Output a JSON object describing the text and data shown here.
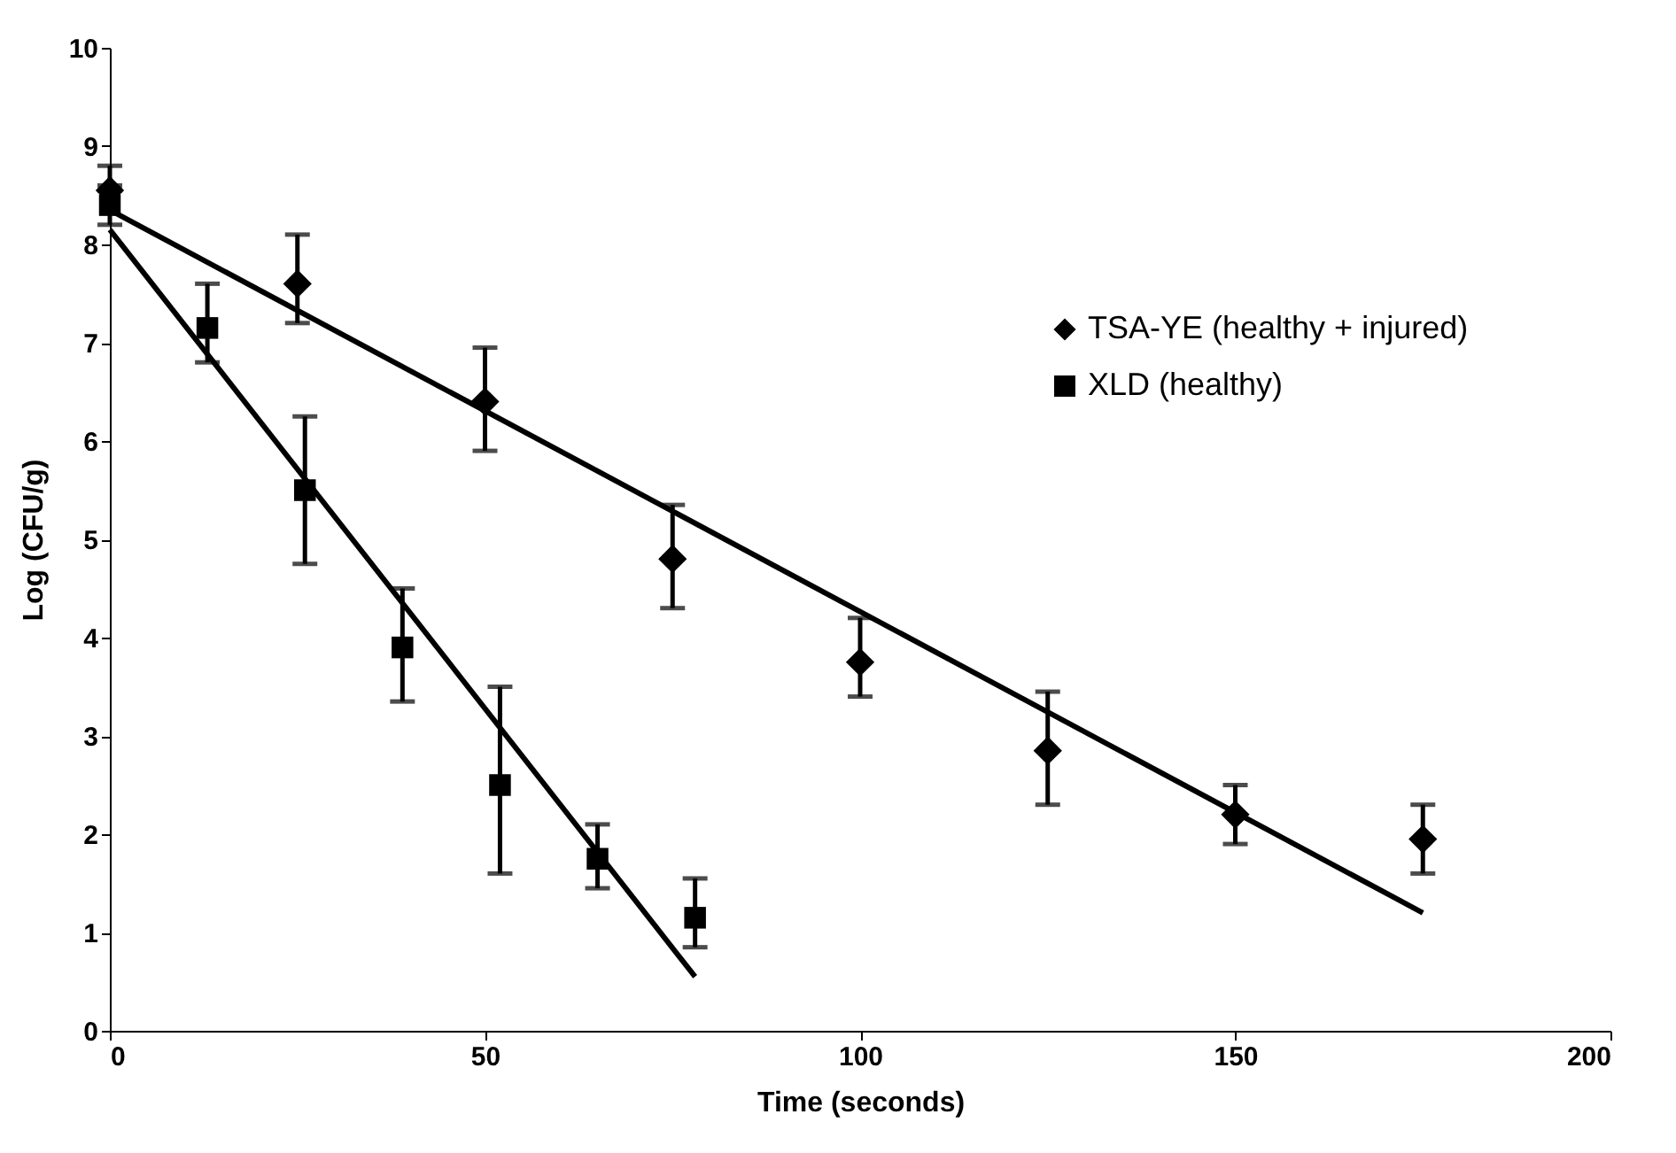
{
  "chart_data": {
    "type": "scatter",
    "xlabel": "Time (seconds)",
    "ylabel": "Log (CFU/g)",
    "xlim": [
      0,
      200
    ],
    "xticks": [
      0,
      50,
      100,
      150,
      200
    ],
    "ylim": [
      0,
      10
    ],
    "yticks": [
      0,
      1,
      2,
      3,
      4,
      5,
      6,
      7,
      8,
      9,
      10
    ],
    "grid": false,
    "legend": "right",
    "series": [
      {
        "name": "TSA-YE (healthy + injured)",
        "marker": "diamond",
        "color": "#000000",
        "x": [
          0,
          25,
          50,
          75,
          100,
          125,
          150,
          175
        ],
        "values": [
          8.55,
          7.6,
          6.4,
          4.8,
          3.75,
          2.85,
          2.2,
          1.95
        ],
        "errors": [
          [
            8.55,
            8.8
          ],
          [
            7.2,
            8.1
          ],
          [
            5.9,
            6.95
          ],
          [
            4.3,
            5.35
          ],
          [
            3.4,
            4.2
          ],
          [
            2.3,
            3.45
          ],
          [
            1.9,
            2.5
          ],
          [
            1.6,
            2.3
          ]
        ]
      },
      {
        "name": "XLD (healthy)",
        "marker": "square",
        "color": "#000000",
        "x": [
          0,
          13,
          26,
          39,
          52,
          65,
          78
        ],
        "values": [
          8.4,
          7.15,
          5.5,
          3.9,
          2.5,
          1.75,
          1.15
        ],
        "errors": [
          [
            8.2,
            8.6
          ],
          [
            6.8,
            7.6
          ],
          [
            4.75,
            6.25
          ],
          [
            3.35,
            4.5
          ],
          [
            1.6,
            3.5
          ],
          [
            1.45,
            2.1
          ],
          [
            0.85,
            1.55
          ]
        ]
      },
      {
        "type": "line",
        "marker": "none",
        "line_style": "solid",
        "color": "#000000",
        "x": [
          0,
          175
        ],
        "values": [
          8.35,
          1.2
        ]
      },
      {
        "type": "line",
        "marker": "none",
        "line_style": "solid",
        "color": "#000000",
        "x": [
          0,
          78
        ],
        "values": [
          8.15,
          0.55
        ]
      }
    ]
  }
}
